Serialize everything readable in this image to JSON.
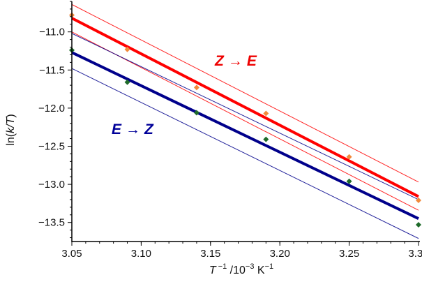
{
  "chart_data": {
    "type": "scatter",
    "xlabel": {
      "italic": "T",
      "sup1": " −1",
      "rest": " /10",
      "sup2": "−3",
      "unit": " K",
      "sup3": "−1"
    },
    "ylabel": {
      "pre": "ln(",
      "italic": "k/T",
      "post": ")"
    },
    "xlim": [
      3.05,
      3.3
    ],
    "ylim": [
      -13.75,
      -10.6
    ],
    "xticks": [
      "3.05",
      "3.10",
      "3.15",
      "3.20",
      "3.25",
      "3.30"
    ],
    "yticks": [
      "−11.0",
      "−11.5",
      "−12.0",
      "−12.5",
      "−13.0",
      "−13.5"
    ],
    "series": [
      {
        "key": "z_to_e",
        "name": "Z → E",
        "name_parts": [
          "Z",
          "→",
          "E"
        ],
        "color": "#ff0000",
        "marker_color": "#f28a3b",
        "x": [
          3.05,
          3.09,
          3.14,
          3.19,
          3.25,
          3.3
        ],
        "y": [
          -10.78,
          -11.23,
          -11.73,
          -12.07,
          -12.64,
          -13.21
        ],
        "fit": {
          "x": [
            3.05,
            3.3
          ],
          "y": [
            -10.82,
            -13.16
          ]
        },
        "ci_upper": {
          "x": [
            3.05,
            3.3
          ],
          "y": [
            -10.64,
            -12.97
          ]
        },
        "ci_lower": {
          "x": [
            3.05,
            3.3
          ],
          "y": [
            -11.0,
            -13.34
          ]
        }
      },
      {
        "key": "e_to_z",
        "name": "E → Z",
        "name_parts": [
          "E",
          "→",
          "Z"
        ],
        "color": "#00008b",
        "marker_color": "#1f6b2a",
        "x": [
          3.05,
          3.09,
          3.14,
          3.19,
          3.25,
          3.3
        ],
        "y": [
          -11.24,
          -11.66,
          -12.06,
          -12.41,
          -12.96,
          -13.53
        ],
        "fit": {
          "x": [
            3.05,
            3.3
          ],
          "y": [
            -11.27,
            -13.45
          ]
        },
        "ci_upper": {
          "x": [
            3.05,
            3.3
          ],
          "y": [
            -11.02,
            -13.2
          ]
        },
        "ci_lower": {
          "x": [
            3.05,
            3.3
          ],
          "y": [
            -11.48,
            -13.71
          ]
        }
      }
    ]
  }
}
